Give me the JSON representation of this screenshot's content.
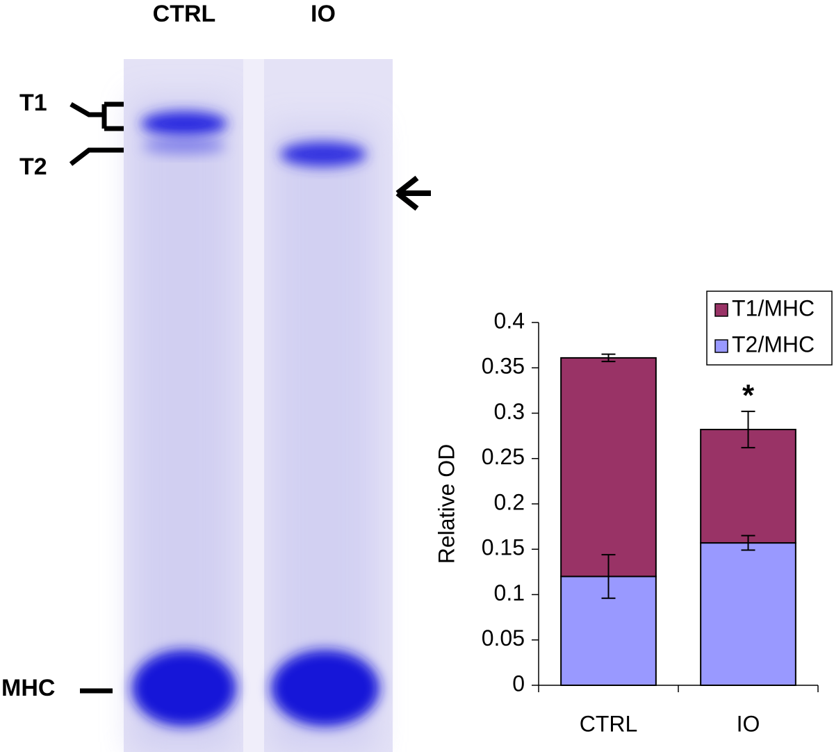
{
  "gel": {
    "lanes": [
      "CTRL",
      "IO"
    ],
    "bands": [
      "T1",
      "T2",
      "MHC"
    ]
  },
  "chart_data": {
    "type": "bar",
    "stacked": true,
    "y_label": "Relative OD",
    "categories": [
      "CTRL",
      "IO"
    ],
    "series": [
      {
        "name": "T2/MHC",
        "color": "#9999ff",
        "values": [
          0.12,
          0.157
        ],
        "errors": [
          0.024,
          0.008
        ]
      },
      {
        "name": "T1/MHC",
        "color": "#993366",
        "values": [
          0.241,
          0.125
        ],
        "errors": [
          0.004,
          0.02
        ]
      }
    ],
    "ylim": [
      0,
      0.4
    ],
    "yticks": [
      0,
      0.05,
      0.1,
      0.15,
      0.2,
      0.25,
      0.3,
      0.35,
      0.4
    ],
    "legend": "top right",
    "annotations": [
      {
        "text": "*",
        "x": "IO"
      }
    ]
  }
}
